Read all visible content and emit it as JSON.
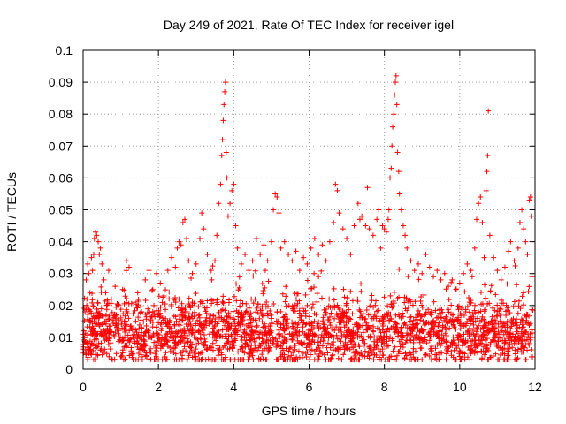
{
  "chart_data": {
    "type": "scatter",
    "title": "Day 249 of 2021, Rate Of TEC Index for receiver igel",
    "xlabel": "GPS time / hours",
    "ylabel": "ROTI / TECUs",
    "xlim": [
      0,
      12
    ],
    "ylim": [
      0,
      0.1
    ],
    "x_ticks": [
      {
        "value": 0,
        "label": "0"
      },
      {
        "value": 2,
        "label": "2"
      },
      {
        "value": 4,
        "label": "4"
      },
      {
        "value": 6,
        "label": "6"
      },
      {
        "value": 8,
        "label": "8"
      },
      {
        "value": 10,
        "label": "10"
      },
      {
        "value": 12,
        "label": "12"
      }
    ],
    "y_ticks": [
      {
        "value": 0,
        "label": "0"
      },
      {
        "value": 0.01,
        "label": "0.01"
      },
      {
        "value": 0.02,
        "label": "0.02"
      },
      {
        "value": 0.03,
        "label": "0.03"
      },
      {
        "value": 0.04,
        "label": "0.04"
      },
      {
        "value": 0.05,
        "label": "0.05"
      },
      {
        "value": 0.06,
        "label": "0.06"
      },
      {
        "value": 0.07,
        "label": "0.07"
      },
      {
        "value": 0.08,
        "label": "0.08"
      },
      {
        "value": 0.09,
        "label": "0.09"
      },
      {
        "value": 0.1,
        "label": "0.1"
      }
    ],
    "grid": true,
    "marker": "+",
    "series": [
      {
        "name": "ROTI",
        "color": "#ff0000",
        "points": [
          [
            0.02,
            0.012
          ],
          [
            0.05,
            0.018
          ],
          [
            0.08,
            0.028
          ],
          [
            0.1,
            0.022
          ],
          [
            0.12,
            0.033
          ],
          [
            0.15,
            0.03
          ],
          [
            0.18,
            0.024
          ],
          [
            0.22,
            0.035
          ],
          [
            0.25,
            0.031
          ],
          [
            0.28,
            0.036
          ],
          [
            0.3,
            0.041
          ],
          [
            0.33,
            0.043
          ],
          [
            0.36,
            0.042
          ],
          [
            0.4,
            0.04
          ],
          [
            0.43,
            0.036
          ],
          [
            0.46,
            0.038
          ],
          [
            0.5,
            0.033
          ],
          [
            0.55,
            0.028
          ],
          [
            0.6,
            0.024
          ],
          [
            0.68,
            0.031
          ],
          [
            0.75,
            0.022
          ],
          [
            0.85,
            0.026
          ],
          [
            0.95,
            0.02
          ],
          [
            1.05,
            0.025
          ],
          [
            1.15,
            0.034
          ],
          [
            1.22,
            0.032
          ],
          [
            1.35,
            0.021
          ],
          [
            1.45,
            0.024
          ],
          [
            1.55,
            0.018
          ],
          [
            1.65,
            0.028
          ],
          [
            1.75,
            0.031
          ],
          [
            1.85,
            0.025
          ],
          [
            1.95,
            0.03
          ],
          [
            2.05,
            0.027
          ],
          [
            2.15,
            0.023
          ],
          [
            2.25,
            0.031
          ],
          [
            2.35,
            0.035
          ],
          [
            2.45,
            0.032
          ],
          [
            2.5,
            0.038
          ],
          [
            2.55,
            0.04
          ],
          [
            2.6,
            0.039
          ],
          [
            2.65,
            0.046
          ],
          [
            2.7,
            0.047
          ],
          [
            2.75,
            0.041
          ],
          [
            2.8,
            0.034
          ],
          [
            2.9,
            0.03
          ],
          [
            3.0,
            0.033
          ],
          [
            3.1,
            0.041
          ],
          [
            3.15,
            0.049
          ],
          [
            3.2,
            0.044
          ],
          [
            3.3,
            0.036
          ],
          [
            3.4,
            0.031
          ],
          [
            3.5,
            0.034
          ],
          [
            3.55,
            0.042
          ],
          [
            3.6,
            0.052
          ],
          [
            3.65,
            0.058
          ],
          [
            3.68,
            0.067
          ],
          [
            3.7,
            0.072
          ],
          [
            3.72,
            0.078
          ],
          [
            3.74,
            0.083
          ],
          [
            3.76,
            0.087
          ],
          [
            3.78,
            0.09
          ],
          [
            3.8,
            0.068
          ],
          [
            3.82,
            0.06
          ],
          [
            3.85,
            0.048
          ],
          [
            3.9,
            0.052
          ],
          [
            3.95,
            0.056
          ],
          [
            4.0,
            0.058
          ],
          [
            4.05,
            0.045
          ],
          [
            4.1,
            0.038
          ],
          [
            4.2,
            0.033
          ],
          [
            4.3,
            0.036
          ],
          [
            4.4,
            0.031
          ],
          [
            4.5,
            0.034
          ],
          [
            4.6,
            0.041
          ],
          [
            4.7,
            0.036
          ],
          [
            4.8,
            0.039
          ],
          [
            4.9,
            0.034
          ],
          [
            5.0,
            0.04
          ],
          [
            5.05,
            0.05
          ],
          [
            5.1,
            0.055
          ],
          [
            5.15,
            0.054
          ],
          [
            5.2,
            0.049
          ],
          [
            5.25,
            0.038
          ],
          [
            5.35,
            0.04
          ],
          [
            5.45,
            0.036
          ],
          [
            5.55,
            0.034
          ],
          [
            5.65,
            0.037
          ],
          [
            5.75,
            0.031
          ],
          [
            5.85,
            0.035
          ],
          [
            5.95,
            0.033
          ],
          [
            6.05,
            0.038
          ],
          [
            6.15,
            0.041
          ],
          [
            6.25,
            0.036
          ],
          [
            6.35,
            0.039
          ],
          [
            6.45,
            0.034
          ],
          [
            6.55,
            0.04
          ],
          [
            6.65,
            0.046
          ],
          [
            6.7,
            0.058
          ],
          [
            6.75,
            0.056
          ],
          [
            6.8,
            0.049
          ],
          [
            6.9,
            0.044
          ],
          [
            7.0,
            0.041
          ],
          [
            7.1,
            0.036
          ],
          [
            7.2,
            0.045
          ],
          [
            7.3,
            0.052
          ],
          [
            7.35,
            0.047
          ],
          [
            7.4,
            0.048
          ],
          [
            7.5,
            0.045
          ],
          [
            7.55,
            0.057
          ],
          [
            7.6,
            0.044
          ],
          [
            7.7,
            0.042
          ],
          [
            7.8,
            0.047
          ],
          [
            7.85,
            0.05
          ],
          [
            7.9,
            0.038
          ],
          [
            7.95,
            0.045
          ],
          [
            8.0,
            0.044
          ],
          [
            8.05,
            0.043
          ],
          [
            8.1,
            0.047
          ],
          [
            8.12,
            0.05
          ],
          [
            8.15,
            0.06
          ],
          [
            8.18,
            0.063
          ],
          [
            8.2,
            0.07
          ],
          [
            8.22,
            0.076
          ],
          [
            8.25,
            0.08
          ],
          [
            8.27,
            0.086
          ],
          [
            8.29,
            0.09
          ],
          [
            8.31,
            0.092
          ],
          [
            8.33,
            0.083
          ],
          [
            8.35,
            0.068
          ],
          [
            8.38,
            0.062
          ],
          [
            8.4,
            0.055
          ],
          [
            8.45,
            0.05
          ],
          [
            8.5,
            0.045
          ],
          [
            8.55,
            0.042
          ],
          [
            8.6,
            0.038
          ],
          [
            8.7,
            0.034
          ],
          [
            8.8,
            0.031
          ],
          [
            8.9,
            0.033
          ],
          [
            9.0,
            0.03
          ],
          [
            9.1,
            0.036
          ],
          [
            9.2,
            0.032
          ],
          [
            9.3,
            0.029
          ],
          [
            9.4,
            0.031
          ],
          [
            9.5,
            0.028
          ],
          [
            9.6,
            0.03
          ],
          [
            9.7,
            0.026
          ],
          [
            9.8,
            0.028
          ],
          [
            9.9,
            0.025
          ],
          [
            10.0,
            0.027
          ],
          [
            10.1,
            0.03
          ],
          [
            10.2,
            0.033
          ],
          [
            10.3,
            0.031
          ],
          [
            10.4,
            0.038
          ],
          [
            10.45,
            0.047
          ],
          [
            10.5,
            0.052
          ],
          [
            10.55,
            0.054
          ],
          [
            10.6,
            0.046
          ],
          [
            10.65,
            0.035
          ],
          [
            10.7,
            0.056
          ],
          [
            10.72,
            0.062
          ],
          [
            10.74,
            0.067
          ],
          [
            10.76,
            0.081
          ],
          [
            10.8,
            0.042
          ],
          [
            10.9,
            0.035
          ],
          [
            11.0,
            0.031
          ],
          [
            11.1,
            0.028
          ],
          [
            11.2,
            0.032
          ],
          [
            11.3,
            0.037
          ],
          [
            11.35,
            0.04
          ],
          [
            11.45,
            0.034
          ],
          [
            11.55,
            0.038
          ],
          [
            11.6,
            0.046
          ],
          [
            11.65,
            0.05
          ],
          [
            11.7,
            0.044
          ],
          [
            11.75,
            0.04
          ],
          [
            11.8,
            0.036
          ],
          [
            11.85,
            0.053
          ],
          [
            11.88,
            0.054
          ],
          [
            11.9,
            0.048
          ],
          [
            11.92,
            0.029
          ]
        ]
      }
    ],
    "baseline_band": {
      "description": "dense band of points covering the whole time range",
      "typical_min": 0.003,
      "typical_center": 0.011,
      "typical_max": 0.025,
      "x_range": [
        0,
        11.95
      ]
    }
  }
}
